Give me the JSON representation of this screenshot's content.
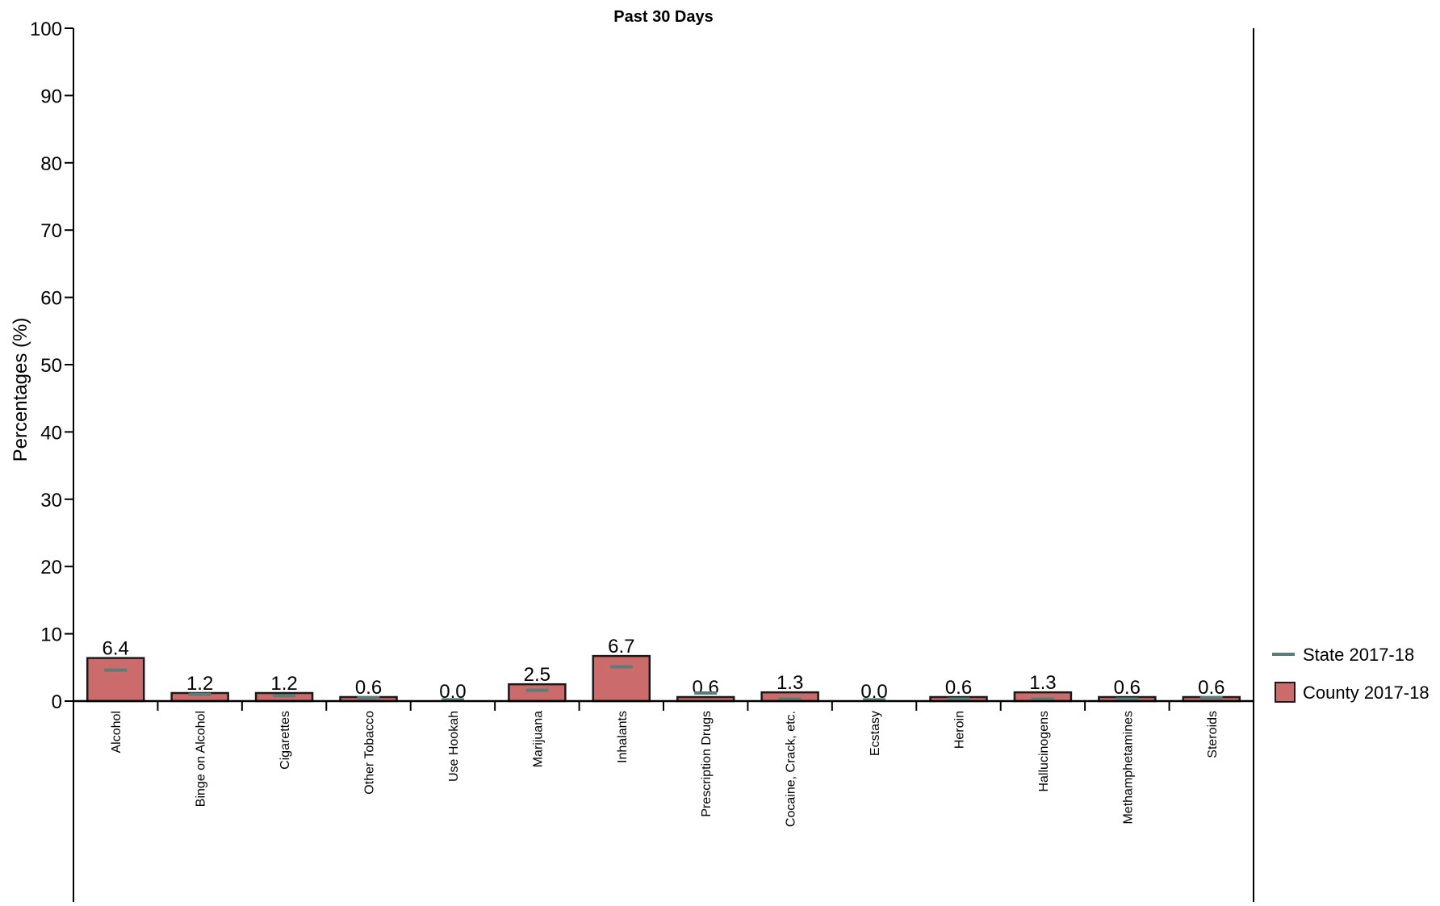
{
  "chart_data": {
    "type": "bar",
    "title": "Past 30 Days",
    "ylabel": "Percentages (%)",
    "xlabel": "",
    "ylim": [
      0,
      100
    ],
    "yticks": [
      0,
      10,
      20,
      30,
      40,
      50,
      60,
      70,
      80,
      90,
      100
    ],
    "grid": false,
    "legend_position": "right",
    "categories": [
      "Alcohol",
      "Binge on Alcohol",
      "Cigarettes",
      "Other Tobacco",
      "Use Hookah",
      "Marijuana",
      "Inhalants",
      "Prescription Drugs",
      "Cocaine, Crack, etc.",
      "Ecstasy",
      "Heroin",
      "Hallucinogens",
      "Methamphetamines",
      "Steroids"
    ],
    "series": [
      {
        "name": "County 2017-18",
        "kind": "bar",
        "color": "#cc6b6b",
        "values": [
          6.4,
          1.2,
          1.2,
          0.6,
          0.0,
          2.5,
          6.7,
          0.6,
          1.3,
          0.0,
          0.6,
          1.3,
          0.6,
          0.6
        ],
        "labels": [
          "6.4",
          "1.2",
          "1.2",
          "0.6",
          "0.0",
          "2.5",
          "6.7",
          "0.6",
          "1.3",
          "0.0",
          "0.6",
          "1.3",
          "0.6",
          "0.6"
        ]
      },
      {
        "name": "State 2017-18",
        "kind": "marker",
        "color": "#5a7d7a",
        "values": [
          4.6,
          1.0,
          0.8,
          0.5,
          0.2,
          1.6,
          5.1,
          1.2,
          0.3,
          0.2,
          0.3,
          0.3,
          0.3,
          0.5
        ]
      }
    ]
  }
}
